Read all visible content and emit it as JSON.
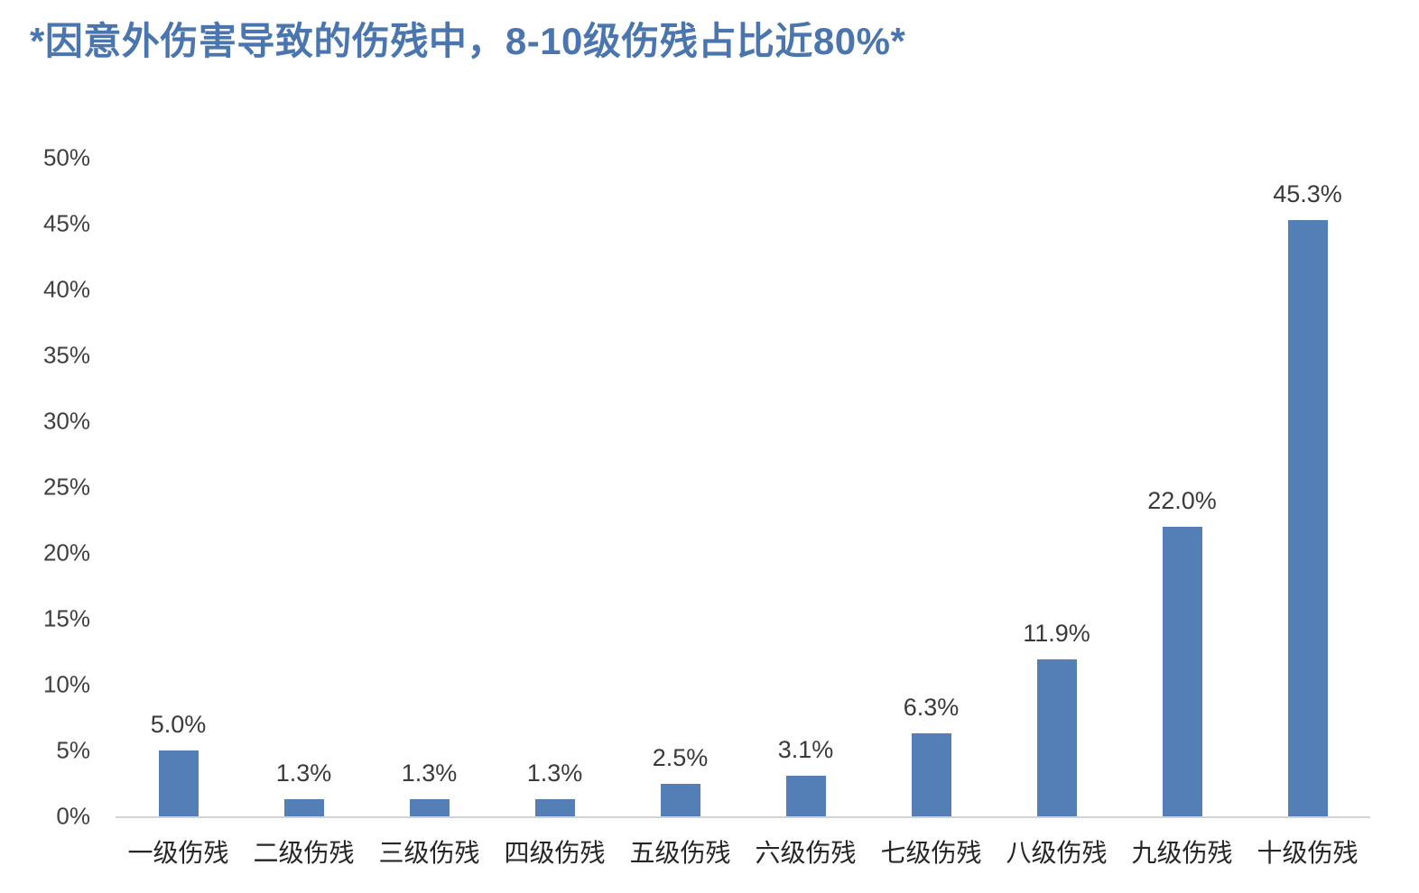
{
  "title": "*因意外伤害导致的伤残中，8-10级伤残占比近80%*",
  "title_color": "#4A75AE",
  "chart_data": {
    "type": "bar",
    "title": "*因意外伤害导致的伤残中，8-10级伤残占比近80%*",
    "categories": [
      "一级伤残",
      "二级伤残",
      "三级伤残",
      "四级伤残",
      "五级伤残",
      "六级伤残",
      "七级伤残",
      "八级伤残",
      "九级伤残",
      "十级伤残"
    ],
    "values": [
      5.0,
      1.3,
      1.3,
      1.3,
      2.5,
      3.1,
      6.3,
      11.9,
      22.0,
      45.3
    ],
    "value_labels": [
      "5.0%",
      "1.3%",
      "1.3%",
      "1.3%",
      "2.5%",
      "3.1%",
      "6.3%",
      "11.9%",
      "22.0%",
      "45.3%"
    ],
    "xlabel": "",
    "ylabel": "",
    "ylim": [
      0,
      50
    ],
    "ytick_step": 5,
    "ytick_labels": [
      "0%",
      "5%",
      "10%",
      "15%",
      "20%",
      "25%",
      "30%",
      "35%",
      "40%",
      "45%",
      "50%"
    ],
    "grid": false,
    "legend": false,
    "bar_color": "#547EB6",
    "value_label_color": "#3A3A3A",
    "axis_tick_color": "#3F3F3F",
    "axis_line_color": "#D3D3D3"
  }
}
